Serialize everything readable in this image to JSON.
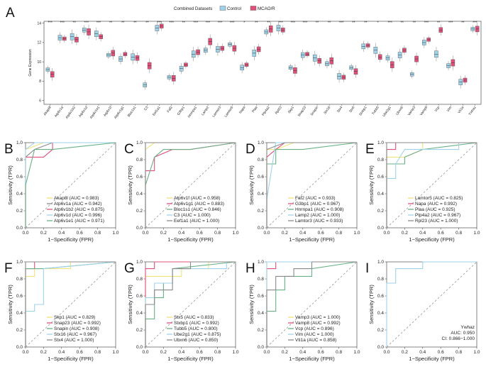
{
  "chart_data": [
    {
      "panel": "A",
      "type": "box",
      "title": "",
      "legend_title": "Combined Datasets",
      "groups": [
        "Control",
        "MCAO/R"
      ],
      "group_colors": [
        "#9fd3ea",
        "#e0507a"
      ],
      "ylabel": "Gene Expression",
      "ylim": [
        5.6,
        14.2
      ],
      "yticks": [
        6,
        8,
        10,
        12,
        14
      ],
      "genes": [
        "Akap8l",
        "Atp6v1a",
        "Atp6v1b2",
        "Atp6v1d",
        "Atp6v1e1",
        "Atp6v1f",
        "Atp6v1g1",
        "Bloc1s1",
        "C3",
        "Eef1a1",
        "Faf2",
        "G3bp1",
        "Hnrnpa1",
        "Lamp2",
        "Lamtor3",
        "Lamtor5",
        "Napa",
        "Plaa",
        "Ptp4a2",
        "Rpl23",
        "Skp1",
        "Snap23",
        "Snapin",
        "Stx16",
        "Stx4",
        "Stx5",
        "Stxbp1",
        "Tubb5",
        "Ube2g1",
        "Ubxn6",
        "Vamp3",
        "Vamp8",
        "Vcp",
        "Vim",
        "Vti1a",
        "Ywhaz"
      ],
      "significance": [
        "***",
        "***",
        "**",
        "***",
        "***",
        "**",
        "**",
        "**",
        "**",
        "***",
        "***",
        "**",
        "***",
        "***",
        "***",
        "***",
        "*",
        "**",
        "**",
        "***",
        "***",
        "***",
        "**",
        "**",
        "***",
        "**",
        "**",
        "*",
        "***",
        "**",
        "**",
        "***",
        "**",
        "***",
        "**",
        "***"
      ],
      "control_median": [
        9.2,
        12.5,
        12.6,
        13.3,
        12.9,
        10.7,
        10.3,
        10.5,
        7.6,
        13.5,
        8.4,
        9.3,
        10.8,
        11.2,
        11.3,
        11.8,
        9.4,
        10.9,
        13.1,
        13.5,
        9.4,
        10.7,
        10.4,
        9.8,
        8.5,
        9.4,
        11.6,
        11.2,
        10.4,
        10.7,
        8.7,
        12.0,
        10.8,
        9.6,
        7.9,
        13.4
      ],
      "mcao_median": [
        8.7,
        12.4,
        12.3,
        13.1,
        12.6,
        10.9,
        10.8,
        10.4,
        9.6,
        13.7,
        8.3,
        9.7,
        11.0,
        12.1,
        11.4,
        11.4,
        9.7,
        11.3,
        13.4,
        13.3,
        9.1,
        10.8,
        10.1,
        10.1,
        8.4,
        9.0,
        11.7,
        10.5,
        9.7,
        11.2,
        10.3,
        12.3,
        13.3,
        9.9,
        8.1,
        13.4
      ]
    },
    {
      "panel": "B",
      "type": "roc",
      "xlabel": "1−Specificity (FPR)",
      "ylabel": "Sensitivity (TPR)",
      "xlim": [
        0,
        1
      ],
      "ylim": [
        0,
        1
      ],
      "series": [
        {
          "name": "Akap8l (AUC = 0.983)",
          "color": "#f2e27a",
          "x": [
            0,
            0,
            0.2,
            1
          ],
          "y": [
            0,
            0.92,
            1,
            1
          ]
        },
        {
          "name": "Atp6v1a (AUC = 0.942)",
          "color": "#8a8a8a",
          "x": [
            0,
            0,
            0.1,
            0.3,
            1
          ],
          "y": [
            0,
            0.83,
            0.92,
            1,
            1
          ]
        },
        {
          "name": "Atp6v1b2 (AUC = 0.875)",
          "color": "#e0507a",
          "x": [
            0,
            0,
            0.2,
            0.3,
            0.3,
            1
          ],
          "y": [
            0,
            0.83,
            0.83,
            0.92,
            1,
            1
          ]
        },
        {
          "name": "Atp6v1d (AUC = 0.996)",
          "color": "#9fd3ea",
          "x": [
            0,
            0,
            0.1,
            1
          ],
          "y": [
            0,
            0.92,
            1,
            1
          ]
        },
        {
          "name": "Atp6v1e1 (AUC = 0.971)",
          "color": "#6ab187",
          "x": [
            0,
            0,
            0.1,
            0.3,
            1
          ],
          "y": [
            0,
            0.5,
            0.92,
            0.92,
            1
          ]
        }
      ]
    },
    {
      "panel": "C",
      "type": "roc",
      "xlabel": "1−Specificity (FPR)",
      "ylabel": "Sensitivity (TPR)",
      "xlim": [
        0,
        1
      ],
      "ylim": [
        0,
        1
      ],
      "series": [
        {
          "name": "Atp6v1f (AUC = 0.958)",
          "color": "#f2e27a",
          "x": [
            0,
            0,
            0.1,
            1
          ],
          "y": [
            0,
            0.92,
            1,
            1
          ]
        },
        {
          "name": "Atp6v1g1 (AUC = 0.883)",
          "color": "#e0507a",
          "x": [
            0,
            0,
            0.1,
            0.1,
            0.3,
            0.5,
            1
          ],
          "y": [
            0,
            0.67,
            0.67,
            0.83,
            0.92,
            0.92,
            1
          ]
        },
        {
          "name": "Bloc1s1 (AUC = 0.846)",
          "color": "#6ab187",
          "x": [
            0,
            0,
            0.1,
            0.2,
            0.5,
            1
          ],
          "y": [
            0,
            0.5,
            0.83,
            0.92,
            0.92,
            1
          ]
        },
        {
          "name": "C3 (AUC = 1.000)",
          "color": "#9fd3ea",
          "x": [
            0,
            0,
            1
          ],
          "y": [
            0,
            1,
            1
          ]
        },
        {
          "name": "Eef1a1 (AUC = 1.000)",
          "color": "#8a8a8a",
          "x": [
            0,
            0,
            1
          ],
          "y": [
            0,
            1,
            1
          ]
        }
      ]
    },
    {
      "panel": "D",
      "type": "roc",
      "xlabel": "1−Specificity (FPR)",
      "ylabel": "Sensitivity (TPR)",
      "xlim": [
        0,
        1
      ],
      "ylim": [
        0,
        1
      ],
      "series": [
        {
          "name": "Faf2 (AUC = 0.933)",
          "color": "#f2e27a",
          "x": [
            0,
            0,
            0.1,
            0.3,
            1
          ],
          "y": [
            0,
            0.92,
            0.92,
            1,
            1
          ]
        },
        {
          "name": "G3bp1 (AUC = 0.967)",
          "color": "#e0507a",
          "x": [
            0,
            0,
            0.1,
            0.2,
            1
          ],
          "y": [
            0,
            0.83,
            0.92,
            1,
            1
          ]
        },
        {
          "name": "Hnrnpa1 (AUC = 0.908)",
          "color": "#6ab187",
          "x": [
            0,
            0,
            0.1,
            0.1,
            0.4,
            1
          ],
          "y": [
            0,
            0.75,
            0.75,
            0.92,
            0.92,
            1
          ]
        },
        {
          "name": "Lamp2 (AUC = 1.000)",
          "color": "#9fd3ea",
          "x": [
            0,
            0,
            0.1,
            1
          ],
          "y": [
            0,
            0.33,
            1,
            1
          ]
        },
        {
          "name": "Lamtor3 (AUC = 0.933)",
          "color": "#8a8a8a",
          "x": [
            0,
            0,
            0.2,
            1
          ],
          "y": [
            0,
            0.92,
            1,
            1
          ]
        }
      ]
    },
    {
      "panel": "E",
      "type": "roc",
      "xlabel": "1−Specificity (FPR)",
      "ylabel": "Sensitivity (TPR)",
      "xlim": [
        0,
        1
      ],
      "ylim": [
        0,
        1
      ],
      "series": [
        {
          "name": "Lamtor5 (AUC = 0.825)",
          "color": "#f2e27a",
          "x": [
            0,
            0,
            0.2,
            0.4,
            0.4,
            1
          ],
          "y": [
            0,
            0.83,
            0.83,
            0.92,
            1,
            1
          ]
        },
        {
          "name": "Napa (AUC = 0.992)",
          "color": "#e0507a",
          "x": [
            0,
            0,
            0.1,
            0.1,
            1
          ],
          "y": [
            0,
            0.92,
            0.92,
            1,
            1
          ]
        },
        {
          "name": "Plaa (AUC = 0.925)",
          "color": "#6ab187",
          "x": [
            0,
            0,
            0.2,
            0.2,
            0.4,
            1
          ],
          "y": [
            0,
            0.75,
            0.75,
            0.83,
            0.92,
            1
          ]
        },
        {
          "name": "Ptp4a2 (AUC = 0.967)",
          "color": "#9fd3ea",
          "x": [
            0,
            0,
            0.1,
            0.1,
            0.2,
            0.8,
            0.8,
            1
          ],
          "y": [
            0,
            0.58,
            0.58,
            0.75,
            0.92,
            0.92,
            1,
            1
          ]
        },
        {
          "name": "Rpl23 (AUC = 1.000)",
          "color": "#8a8a8a",
          "x": [
            0,
            0,
            1
          ],
          "y": [
            0,
            1,
            1
          ]
        }
      ]
    },
    {
      "panel": "F",
      "type": "roc",
      "xlabel": "1−Specificity (FPR)",
      "ylabel": "Sensitivity (TPR)",
      "xlim": [
        0,
        1
      ],
      "ylim": [
        0,
        1
      ],
      "series": [
        {
          "name": "Skp1 (AUC = 0.829)",
          "color": "#f2e27a",
          "x": [
            0,
            0,
            0.1,
            0.1,
            0.5,
            0.5,
            1
          ],
          "y": [
            0,
            0.83,
            0.83,
            0.92,
            0.92,
            1,
            1
          ]
        },
        {
          "name": "Snap23 (AUC = 0.992)",
          "color": "#e0507a",
          "x": [
            0,
            0,
            0.1,
            0.1,
            1
          ],
          "y": [
            0,
            0.92,
            0.92,
            1,
            1
          ]
        },
        {
          "name": "Snapin (AUC = 0.908)",
          "color": "#6ab187",
          "x": [
            0,
            0,
            0.2,
            0.2,
            1
          ],
          "y": [
            0,
            0.92,
            0.92,
            0.92,
            1
          ]
        },
        {
          "name": "Stx16 (AUC = 0.967)",
          "color": "#9fd3ea",
          "x": [
            0,
            0,
            0.1,
            0.1,
            0.2,
            0.2,
            1
          ],
          "y": [
            0,
            0.42,
            0.42,
            0.5,
            0.5,
            0.92,
            1
          ]
        },
        {
          "name": "Stx4 (AUC = 1.000)",
          "color": "#8a8a8a",
          "x": [
            0,
            0,
            1
          ],
          "y": [
            0,
            1,
            1
          ]
        }
      ]
    },
    {
      "panel": "G",
      "type": "roc",
      "xlabel": "1−Specificity (FPR)",
      "ylabel": "Sensitivity (TPR)",
      "xlim": [
        0,
        1
      ],
      "ylim": [
        0,
        1
      ],
      "series": [
        {
          "name": "Stx5 (AUC = 0.833)",
          "color": "#f2e27a",
          "x": [
            0,
            0,
            0.4,
            0.4,
            0.7,
            0.7,
            1
          ],
          "y": [
            0,
            0.83,
            0.83,
            0.92,
            0.92,
            1,
            1
          ]
        },
        {
          "name": "Stxbp1 (AUC = 0.992)",
          "color": "#e0507a",
          "x": [
            0,
            0,
            0.1,
            0.1,
            1
          ],
          "y": [
            0,
            0.92,
            0.92,
            1,
            1
          ]
        },
        {
          "name": "Tubb5 (AUC = 0.800)",
          "color": "#6ab187",
          "x": [
            0,
            0,
            0.1,
            0.1,
            0.2,
            0.2,
            0.3,
            0.3,
            1
          ],
          "y": [
            0,
            0.33,
            0.33,
            0.58,
            0.58,
            0.75,
            0.75,
            0.92,
            1
          ]
        },
        {
          "name": "Ube2g1 (AUC = 0.875)",
          "color": "#9fd3ea",
          "x": [
            0,
            0,
            0.1,
            0.1,
            0.3,
            0.3,
            0.9,
            0.9,
            1
          ],
          "y": [
            0,
            0.58,
            0.58,
            0.75,
            0.75,
            0.92,
            0.92,
            1,
            1
          ]
        },
        {
          "name": "Ubxn6 (AUC = 0.850)",
          "color": "#8a8a8a",
          "x": [
            0,
            0,
            0.1,
            0.1,
            0.3,
            0.3,
            0.5,
            0.5,
            1
          ],
          "y": [
            0,
            0.5,
            0.5,
            0.67,
            0.67,
            0.92,
            0.92,
            1,
            1
          ]
        }
      ]
    },
    {
      "panel": "H",
      "type": "roc",
      "xlabel": "1−Specificity (FPR)",
      "ylabel": "Sensitivity (TPR)",
      "xlim": [
        0,
        1
      ],
      "ylim": [
        0,
        1
      ],
      "series": [
        {
          "name": "Vamp3 (AUC = 1.000)",
          "color": "#f2e27a",
          "x": [
            0,
            0,
            1
          ],
          "y": [
            0,
            1,
            1
          ]
        },
        {
          "name": "Vamp8 (AUC = 0.992)",
          "color": "#e0507a",
          "x": [
            0,
            0,
            0.1,
            0.1,
            1
          ],
          "y": [
            0,
            0.92,
            0.92,
            1,
            1
          ]
        },
        {
          "name": "Vcp (AUC = 0.896)",
          "color": "#6ab187",
          "x": [
            0,
            0,
            0.1,
            0.1,
            0.2,
            0.2,
            0.5,
            0.5,
            1
          ],
          "y": [
            0,
            0.42,
            0.42,
            0.67,
            0.67,
            0.83,
            0.83,
            0.92,
            1
          ]
        },
        {
          "name": "Vim (AUC = 1.000)",
          "color": "#9fd3ea",
          "x": [
            0,
            0,
            1
          ],
          "y": [
            0,
            1,
            1
          ]
        },
        {
          "name": "Vti1a (AUC = 0.858)",
          "color": "#8a8a8a",
          "x": [
            0,
            0,
            0.1,
            0.1,
            0.3,
            0.3,
            0.5,
            0.5,
            1
          ],
          "y": [
            0,
            0.67,
            0.67,
            0.83,
            0.83,
            0.92,
            0.92,
            1,
            1
          ]
        }
      ]
    },
    {
      "panel": "I",
      "type": "roc",
      "xlabel": "1−Specificity (FPR)",
      "ylabel": "Sensitivity (TPR)",
      "xlim": [
        0,
        1
      ],
      "ylim": [
        0,
        1
      ],
      "annotation": [
        "Ywhaz",
        "AUC: 0.950",
        "CI: 0.866−1.000"
      ],
      "series": [
        {
          "name": "Ywhaz",
          "color": "#9fd3ea",
          "x": [
            0,
            0,
            0.1,
            0.1,
            0.4,
            0.4,
            1
          ],
          "y": [
            0,
            0.75,
            0.75,
            0.92,
            0.92,
            1,
            1
          ]
        }
      ]
    }
  ]
}
